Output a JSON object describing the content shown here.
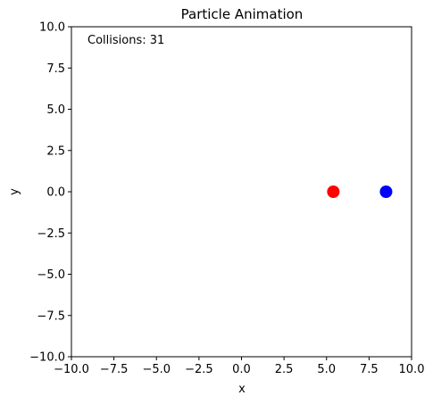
{
  "chart_data": {
    "type": "scatter",
    "title": "Particle Animation",
    "xlabel": "x",
    "ylabel": "y",
    "xlim": [
      -10,
      10
    ],
    "ylim": [
      -10,
      10
    ],
    "xticks": [
      -10.0,
      -7.5,
      -5.0,
      -2.5,
      0.0,
      2.5,
      5.0,
      7.5,
      10.0
    ],
    "yticks": [
      -10.0,
      -7.5,
      -5.0,
      -2.5,
      0.0,
      2.5,
      5.0,
      7.5,
      10.0
    ],
    "xtick_labels": [
      "−10.0",
      "−7.5",
      "−5.0",
      "−2.5",
      "0.0",
      "2.5",
      "5.0",
      "7.5",
      "10.0"
    ],
    "ytick_labels": [
      "−10.0",
      "−7.5",
      "−5.0",
      "−2.5",
      "0.0",
      "2.5",
      "5.0",
      "7.5",
      "10.0"
    ],
    "grid": false,
    "points": [
      {
        "x": 5.4,
        "y": 0.0,
        "color": "#ff0000"
      },
      {
        "x": 8.5,
        "y": 0.0,
        "color": "#0000ff"
      }
    ],
    "annotation": "Collisions: 31"
  }
}
